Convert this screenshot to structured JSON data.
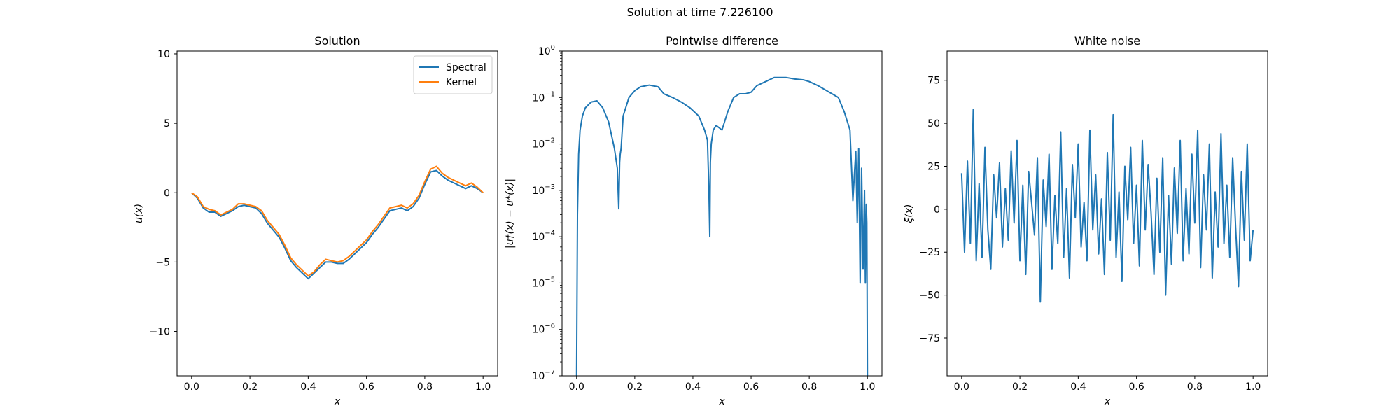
{
  "figure": {
    "title": "Solution at time 7.226100"
  },
  "colors": {
    "spectral": "#1f77b4",
    "kernel": "#ff7f0e",
    "axis": "#000000"
  },
  "chart_data": [
    {
      "type": "line",
      "title": "Solution",
      "xlabel": "x",
      "ylabel": "u(x)",
      "xlim": [
        -0.05,
        1.05
      ],
      "ylim": [
        -13.2,
        10.2
      ],
      "xticks": [
        0.0,
        0.2,
        0.4,
        0.6,
        0.8,
        1.0
      ],
      "xtick_labels": [
        "0.0",
        "0.2",
        "0.4",
        "0.6",
        "0.8",
        "1.0"
      ],
      "yticks": [
        10,
        5,
        0,
        -5,
        -10
      ],
      "ytick_labels": [
        "10",
        "5",
        "0",
        "−5",
        "−10"
      ],
      "legend_position": "top-right",
      "series": [
        {
          "name": "Spectral",
          "color": "#1f77b4",
          "x": [
            0.0,
            0.02,
            0.04,
            0.06,
            0.08,
            0.1,
            0.12,
            0.14,
            0.16,
            0.18,
            0.2,
            0.22,
            0.24,
            0.26,
            0.28,
            0.3,
            0.32,
            0.34,
            0.36,
            0.38,
            0.4,
            0.42,
            0.44,
            0.46,
            0.48,
            0.5,
            0.52,
            0.54,
            0.56,
            0.58,
            0.6,
            0.62,
            0.64,
            0.66,
            0.68,
            0.7,
            0.72,
            0.74,
            0.76,
            0.78,
            0.8,
            0.82,
            0.84,
            0.86,
            0.88,
            0.9,
            0.92,
            0.94,
            0.96,
            0.98,
            1.0
          ],
          "y": [
            0.0,
            -0.4,
            -1.1,
            -1.4,
            -1.4,
            -1.7,
            -1.5,
            -1.3,
            -1.0,
            -0.9,
            -1.0,
            -1.1,
            -1.5,
            -2.2,
            -2.7,
            -3.2,
            -4.0,
            -4.9,
            -5.4,
            -5.8,
            -6.2,
            -5.8,
            -5.4,
            -5.0,
            -5.0,
            -5.1,
            -5.1,
            -4.8,
            -4.4,
            -4.0,
            -3.6,
            -3.0,
            -2.5,
            -1.9,
            -1.3,
            -1.2,
            -1.1,
            -1.3,
            -1.0,
            -0.4,
            0.6,
            1.5,
            1.6,
            1.2,
            0.9,
            0.7,
            0.5,
            0.3,
            0.5,
            0.3,
            0.0
          ]
        },
        {
          "name": "Kernel",
          "color": "#ff7f0e",
          "x": [
            0.0,
            0.02,
            0.04,
            0.06,
            0.08,
            0.1,
            0.12,
            0.14,
            0.16,
            0.18,
            0.2,
            0.22,
            0.24,
            0.26,
            0.28,
            0.3,
            0.32,
            0.34,
            0.36,
            0.38,
            0.4,
            0.42,
            0.44,
            0.46,
            0.48,
            0.5,
            0.52,
            0.54,
            0.56,
            0.58,
            0.6,
            0.62,
            0.64,
            0.66,
            0.68,
            0.7,
            0.72,
            0.74,
            0.76,
            0.78,
            0.8,
            0.82,
            0.84,
            0.86,
            0.88,
            0.9,
            0.92,
            0.94,
            0.96,
            0.98,
            1.0
          ],
          "y": [
            0.0,
            -0.3,
            -1.0,
            -1.2,
            -1.3,
            -1.6,
            -1.4,
            -1.2,
            -0.8,
            -0.8,
            -0.9,
            -1.0,
            -1.3,
            -2.0,
            -2.5,
            -3.0,
            -3.8,
            -4.7,
            -5.2,
            -5.6,
            -6.0,
            -5.7,
            -5.2,
            -4.8,
            -4.9,
            -5.0,
            -4.9,
            -4.6,
            -4.2,
            -3.8,
            -3.4,
            -2.8,
            -2.3,
            -1.7,
            -1.1,
            -1.0,
            -0.9,
            -1.1,
            -0.8,
            -0.2,
            0.8,
            1.7,
            1.9,
            1.4,
            1.1,
            0.9,
            0.7,
            0.5,
            0.7,
            0.4,
            0.0
          ]
        }
      ]
    },
    {
      "type": "line",
      "title": "Pointwise difference",
      "xlabel": "x",
      "ylabel": "|u†(x) − u*(x)|",
      "yscale": "log",
      "xlim": [
        -0.05,
        1.05
      ],
      "ylim": [
        1e-07,
        1
      ],
      "xticks": [
        0.0,
        0.2,
        0.4,
        0.6,
        0.8,
        1.0
      ],
      "xtick_labels": [
        "0.0",
        "0.2",
        "0.4",
        "0.6",
        "0.8",
        "1.0"
      ],
      "yticks_exponents": [
        0,
        -1,
        -2,
        -3,
        -4,
        -5,
        -6,
        -7
      ],
      "series": [
        {
          "name": "",
          "color": "#1f77b4",
          "x": [
            0.0,
            0.003,
            0.007,
            0.012,
            0.02,
            0.03,
            0.05,
            0.07,
            0.09,
            0.11,
            0.13,
            0.14,
            0.145,
            0.148,
            0.15,
            0.153,
            0.16,
            0.18,
            0.2,
            0.22,
            0.25,
            0.28,
            0.3,
            0.33,
            0.36,
            0.39,
            0.42,
            0.44,
            0.45,
            0.455,
            0.458,
            0.46,
            0.463,
            0.47,
            0.48,
            0.5,
            0.52,
            0.54,
            0.56,
            0.58,
            0.6,
            0.62,
            0.65,
            0.68,
            0.7,
            0.72,
            0.75,
            0.78,
            0.8,
            0.83,
            0.86,
            0.9,
            0.92,
            0.94,
            0.95,
            0.96,
            0.965,
            0.97,
            0.975,
            0.98,
            0.985,
            0.99,
            0.993,
            0.996,
            0.998,
            1.0
          ],
          "y": [
            1e-07,
            0.0003,
            0.006,
            0.02,
            0.04,
            0.06,
            0.08,
            0.085,
            0.06,
            0.03,
            0.008,
            0.003,
            0.0004,
            0.004,
            0.006,
            0.008,
            0.04,
            0.1,
            0.14,
            0.17,
            0.185,
            0.17,
            0.12,
            0.1,
            0.08,
            0.06,
            0.04,
            0.02,
            0.012,
            0.001,
            0.0001,
            0.004,
            0.01,
            0.02,
            0.025,
            0.02,
            0.05,
            0.1,
            0.12,
            0.12,
            0.13,
            0.18,
            0.22,
            0.27,
            0.27,
            0.27,
            0.25,
            0.24,
            0.22,
            0.18,
            0.14,
            0.1,
            0.05,
            0.02,
            0.0006,
            0.007,
            0.0002,
            0.008,
            1e-05,
            0.003,
            2e-05,
            0.001,
            1e-05,
            0.0005,
            0.0002,
            1e-07
          ]
        }
      ]
    },
    {
      "type": "line",
      "title": "White noise",
      "xlabel": "x",
      "ylabel": "ξ(x)",
      "xlim": [
        -0.05,
        1.05
      ],
      "ylim": [
        -97,
        92
      ],
      "xticks": [
        0.0,
        0.2,
        0.4,
        0.6,
        0.8,
        1.0
      ],
      "xtick_labels": [
        "0.0",
        "0.2",
        "0.4",
        "0.6",
        "0.8",
        "1.0"
      ],
      "yticks": [
        75,
        50,
        25,
        0,
        -25,
        -50,
        -75
      ],
      "ytick_labels": [
        "75",
        "50",
        "25",
        "0",
        "−25",
        "−50",
        "−75"
      ],
      "series": [
        {
          "name": "",
          "color": "#1f77b4",
          "x": [
            0.0,
            0.01,
            0.02,
            0.03,
            0.04,
            0.05,
            0.06,
            0.07,
            0.08,
            0.09,
            0.1,
            0.11,
            0.12,
            0.13,
            0.14,
            0.15,
            0.16,
            0.17,
            0.18,
            0.19,
            0.2,
            0.21,
            0.22,
            0.23,
            0.24,
            0.25,
            0.26,
            0.27,
            0.28,
            0.29,
            0.3,
            0.31,
            0.32,
            0.33,
            0.34,
            0.35,
            0.36,
            0.37,
            0.38,
            0.39,
            0.4,
            0.41,
            0.42,
            0.43,
            0.44,
            0.45,
            0.46,
            0.47,
            0.48,
            0.49,
            0.5,
            0.51,
            0.52,
            0.53,
            0.54,
            0.55,
            0.56,
            0.57,
            0.58,
            0.59,
            0.6,
            0.61,
            0.62,
            0.63,
            0.64,
            0.65,
            0.66,
            0.67,
            0.68,
            0.69,
            0.7,
            0.71,
            0.72,
            0.73,
            0.74,
            0.75,
            0.76,
            0.77,
            0.78,
            0.79,
            0.8,
            0.81,
            0.82,
            0.83,
            0.84,
            0.85,
            0.86,
            0.87,
            0.88,
            0.89,
            0.9,
            0.91,
            0.92,
            0.93,
            0.94,
            0.95,
            0.96,
            0.97,
            0.98,
            0.99,
            1.0
          ],
          "y": [
            21,
            -25,
            28,
            -20,
            58,
            -30,
            15,
            -28,
            36,
            -12,
            -35,
            20,
            -5,
            27,
            -22,
            12,
            -18,
            34,
            -8,
            40,
            -30,
            14,
            -38,
            22,
            4,
            -15,
            30,
            -54,
            17,
            -10,
            32,
            -35,
            8,
            -20,
            45,
            -28,
            12,
            -40,
            26,
            -5,
            38,
            -22,
            4,
            -30,
            46,
            -12,
            20,
            -26,
            6,
            -38,
            33,
            -18,
            55,
            -28,
            10,
            -42,
            25,
            -6,
            36,
            -20,
            14,
            -33,
            40,
            -12,
            26,
            -2,
            -38,
            18,
            -25,
            30,
            -50,
            8,
            -32,
            24,
            -14,
            40,
            -30,
            12,
            -26,
            32,
            -8,
            46,
            -34,
            20,
            -12,
            38,
            -40,
            10,
            -22,
            44,
            -20,
            14,
            -28,
            30,
            -10,
            -45,
            22,
            -18,
            38,
            -30,
            -12
          ]
        }
      ]
    }
  ]
}
